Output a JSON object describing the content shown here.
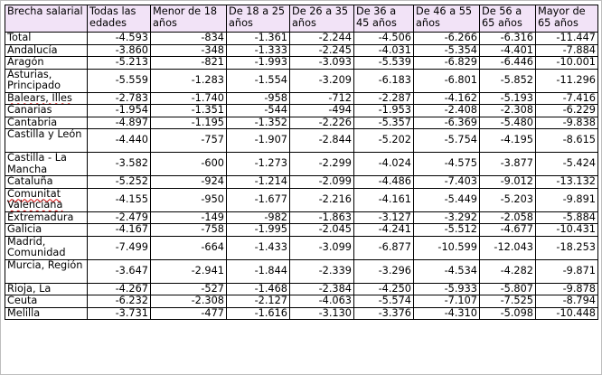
{
  "table": {
    "headers": [
      "Brecha salarial",
      "Todas las edades",
      "Menor de 18 años",
      "De 18 a 25 años",
      "De 26 a 35 años",
      "De 36 a 45 años",
      "De 46 a 55 años",
      "De 56 a 65 años",
      "Mayor de 65 años"
    ],
    "rows": [
      {
        "region": "Total",
        "values": [
          "-4.593",
          "-834",
          "-1.361",
          "-2.244",
          "-4.506",
          "-6.266",
          "-6.316",
          "-11.447"
        ]
      },
      {
        "region": "Andalucía",
        "values": [
          "-3.860",
          "-348",
          "-1.333",
          "-2.245",
          "-4.031",
          "-5.354",
          "-4.401",
          "-7.884"
        ]
      },
      {
        "region": "Aragón",
        "values": [
          "-5.213",
          "-821",
          "-1.993",
          "-3.093",
          "-5.539",
          "-6.829",
          "-6.446",
          "-10.001"
        ]
      },
      {
        "region": "Asturias, Principado",
        "values": [
          "-5.559",
          "-1.283",
          "-1.554",
          "-3.209",
          "-6.183",
          "-6.801",
          "-5.852",
          "-11.296"
        ]
      },
      {
        "region": "Balears, Illes",
        "values": [
          "-2.783",
          "-1.740",
          "-958",
          "-712",
          "-2.287",
          "-4.162",
          "-5.193",
          "-7.416"
        ]
      },
      {
        "region": "Canarias",
        "values": [
          "-1.954",
          "-1.351",
          "-544",
          "-494",
          "-1.953",
          "-2.408",
          "-2.308",
          "-6.229"
        ]
      },
      {
        "region": "Cantabria",
        "values": [
          "-4.897",
          "-1.195",
          "-1.352",
          "-2.226",
          "-5.357",
          "-6.369",
          "-5.480",
          "-9.838"
        ]
      },
      {
        "region": "Castilla y León",
        "values": [
          "-4.440",
          "-757",
          "-1.907",
          "-2.844",
          "-5.202",
          "-5.754",
          "-4.195",
          "-8.615"
        ]
      },
      {
        "region": "Castilla - La Mancha",
        "values": [
          "-3.582",
          "-600",
          "-1.273",
          "-2.299",
          "-4.024",
          "-4.575",
          "-3.877",
          "-5.424"
        ]
      },
      {
        "region": "Cataluña",
        "values": [
          "-5.252",
          "-924",
          "-1.214",
          "-2.099",
          "-4.486",
          "-7.403",
          "-9.012",
          "-13.132"
        ]
      },
      {
        "region": "Comunitat Valenciana",
        "values": [
          "-4.155",
          "-950",
          "-1.677",
          "-2.216",
          "-4.161",
          "-5.449",
          "-5.203",
          "-9.891"
        ]
      },
      {
        "region": "Extremadura",
        "values": [
          "-2.479",
          "-149",
          "-982",
          "-1.863",
          "-3.127",
          "-3.292",
          "-2.058",
          "-5.884"
        ]
      },
      {
        "region": "Galicia",
        "values": [
          "-4.167",
          "-758",
          "-1.995",
          "-2.045",
          "-4.241",
          "-5.512",
          "-4.677",
          "-10.431"
        ]
      },
      {
        "region": "Madrid, Comunidad",
        "values": [
          "-7.499",
          "-664",
          "-1.433",
          "-3.099",
          "-6.877",
          "-10.599",
          "-12.043",
          "-18.253"
        ]
      },
      {
        "region": "Murcia, Región",
        "values": [
          "-3.647",
          "-2.941",
          "-1.844",
          "-2.339",
          "-3.296",
          "-4.534",
          "-4.282",
          "-9.871"
        ]
      },
      {
        "region": "Rioja, La",
        "values": [
          "-4.267",
          "-527",
          "-1.468",
          "-2.384",
          "-4.250",
          "-5.933",
          "-5.807",
          "-9.878"
        ]
      },
      {
        "region": "Ceuta",
        "values": [
          "-6.232",
          "-2.308",
          "-2.127",
          "-4.063",
          "-5.574",
          "-7.107",
          "-7.525",
          "-8.794"
        ]
      },
      {
        "region": "Melilla",
        "values": [
          "-3.731",
          "-477",
          "-1.616",
          "-3.130",
          "-3.376",
          "-4.310",
          "-5.098",
          "-10.448"
        ]
      }
    ]
  }
}
